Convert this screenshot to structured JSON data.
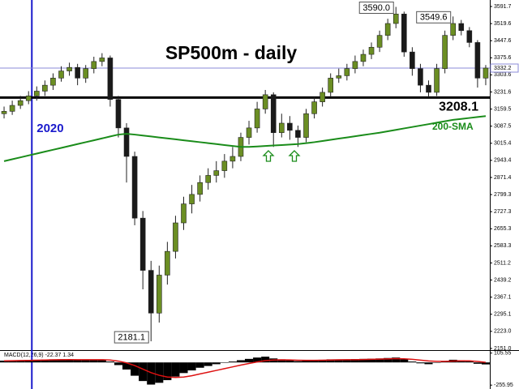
{
  "chart_data": {
    "type": "candlestick",
    "title": "SP500m - daily",
    "categories": [
      null,
      null,
      null,
      null,
      "2020",
      null,
      null,
      null,
      null,
      null,
      null,
      null,
      null,
      null,
      null,
      null,
      null,
      null,
      null,
      null,
      null,
      null,
      null,
      null,
      null,
      null,
      null,
      null,
      null,
      null,
      null,
      null,
      null,
      null,
      null,
      null,
      null,
      null,
      null,
      null,
      null,
      null,
      null,
      null,
      null,
      null,
      null,
      null,
      null,
      null,
      null,
      null,
      null,
      null,
      null,
      null,
      null,
      null,
      null,
      null
    ],
    "open": [
      3140,
      3150,
      3175,
      3195,
      3215,
      3235,
      3260,
      3290,
      3320,
      3335,
      3290,
      3330,
      3360,
      3375,
      3200,
      3080,
      2960,
      2700,
      2480,
      2300,
      2460,
      2560,
      2680,
      2760,
      2800,
      2850,
      2880,
      2900,
      2940,
      2960,
      3040,
      3080,
      3160,
      3220,
      3060,
      3100,
      3070,
      3040,
      3140,
      3190,
      3230,
      3290,
      3300,
      3330,
      3360,
      3390,
      3420,
      3470,
      3520,
      3560,
      3400,
      3330,
      3260,
      3230,
      3330,
      3470,
      3520,
      3490,
      3440,
      3290
    ],
    "high": [
      3170,
      3195,
      3215,
      3235,
      3255,
      3280,
      3310,
      3340,
      3355,
      3350,
      3345,
      3380,
      3395,
      3385,
      3215,
      3100,
      2980,
      2730,
      2520,
      2500,
      2600,
      2710,
      2790,
      2840,
      2880,
      2910,
      2940,
      2970,
      3000,
      3060,
      3110,
      3190,
      3240,
      3230,
      3140,
      3130,
      3090,
      3160,
      3210,
      3250,
      3310,
      3330,
      3350,
      3385,
      3410,
      3440,
      3490,
      3540,
      3590.0,
      3570,
      3420,
      3350,
      3280,
      3350,
      3490,
      3549.6,
      3535,
      3505,
      3450,
      3345
    ],
    "low": [
      3120,
      3135,
      3160,
      3180,
      3195,
      3215,
      3240,
      3275,
      3300,
      3260,
      3270,
      3310,
      3340,
      3170,
      3040,
      2850,
      2670,
      2400,
      2181.1,
      2260,
      2420,
      2530,
      2650,
      2720,
      2770,
      2820,
      2850,
      2870,
      2910,
      2940,
      3010,
      3060,
      3140,
      3000,
      3040,
      3030,
      3000,
      3020,
      3120,
      3170,
      3210,
      3270,
      3280,
      3310,
      3340,
      3370,
      3400,
      3450,
      3500,
      3380,
      3300,
      3230,
      3210,
      3215,
      3310,
      3450,
      3470,
      3420,
      3250,
      3260
    ],
    "close": [
      3150,
      3175,
      3195,
      3215,
      3235,
      3260,
      3290,
      3320,
      3335,
      3290,
      3330,
      3360,
      3375,
      3200,
      3080,
      2960,
      2700,
      2480,
      2300,
      2460,
      2560,
      2680,
      2760,
      2800,
      2850,
      2880,
      2900,
      2940,
      2960,
      3040,
      3080,
      3160,
      3220,
      3060,
      3100,
      3070,
      3040,
      3140,
      3190,
      3230,
      3290,
      3300,
      3330,
      3360,
      3390,
      3420,
      3470,
      3520,
      3560,
      3400,
      3330,
      3260,
      3230,
      3330,
      3470,
      3520,
      3490,
      3440,
      3290,
      3332.2
    ],
    "up_color": "#6b8e23",
    "down_color": "#1a1a1a",
    "value_labels": {
      "high": {
        "48": "3590.0",
        "55": "3549.6"
      },
      "low": {
        "18": "2181.1"
      }
    },
    "sma": {
      "name": "200-SMA",
      "color": "#1a8c1a",
      "values": [
        2940,
        2948,
        2956,
        2964,
        2972,
        2980,
        2988,
        2996,
        3004,
        3012,
        3020,
        3028,
        3036,
        3044,
        3052,
        3055,
        3052,
        3048,
        3044,
        3040,
        3036,
        3032,
        3028,
        3024,
        3020,
        3016,
        3012,
        3008,
        3004,
        3000,
        3000,
        3002,
        3004,
        3006,
        3008,
        3010,
        3012,
        3016,
        3020,
        3025,
        3030,
        3035,
        3040,
        3045,
        3050,
        3055,
        3060,
        3066,
        3072,
        3078,
        3084,
        3090,
        3096,
        3102,
        3108,
        3114,
        3118,
        3122,
        3126,
        3130
      ]
    },
    "hline": {
      "value": 3208.1,
      "label": "3208.1",
      "color": "#000000"
    },
    "last_price_color": "#8b8bd8",
    "year_line_color": "#1a1acc",
    "ylim": [
      2144,
      3619
    ],
    "yticks": [
      {
        "value": 2151.0,
        "label": "2151.0"
      },
      {
        "value": 2223.0,
        "label": "2223.0"
      },
      2295.1,
      2367.1,
      2439.2,
      2511.2,
      2583.3,
      2655.3,
      2727.3,
      2799.3,
      2871.4,
      2943.4,
      3015.4,
      3087.5,
      3159.5,
      3231.6,
      3303.6,
      3375.6,
      3447.6,
      3519.6,
      3591.7
    ],
    "macd": {
      "label": "MACD(12,26,9) -22.37 1.34",
      "histogram": [
        20,
        22,
        25,
        28,
        30,
        32,
        35,
        36,
        34,
        28,
        30,
        32,
        30,
        10,
        -30,
        -80,
        -150,
        -210,
        -250,
        -230,
        -200,
        -160,
        -120,
        -90,
        -60,
        -40,
        -20,
        -5,
        10,
        25,
        40,
        55,
        65,
        45,
        35,
        25,
        15,
        20,
        25,
        30,
        35,
        35,
        35,
        38,
        40,
        42,
        45,
        50,
        55,
        35,
        10,
        -10,
        -20,
        -5,
        15,
        30,
        25,
        15,
        -15,
        -22.37
      ],
      "signal": [
        18,
        19,
        21,
        23,
        25,
        27,
        29,
        31,
        32,
        31,
        31,
        31,
        31,
        27,
        15,
        -5,
        -35,
        -75,
        -115,
        -145,
        -165,
        -170,
        -165,
        -150,
        -130,
        -110,
        -90,
        -70,
        -50,
        -30,
        -12,
        5,
        20,
        27,
        29,
        28,
        25,
        24,
        24,
        25,
        27,
        29,
        30,
        31,
        33,
        35,
        37,
        40,
        43,
        41,
        35,
        26,
        17,
        12,
        12,
        16,
        18,
        18,
        11,
        1.34
      ],
      "histogram_color": "#000000",
      "signal_color": "#dd1111",
      "ylim": [
        -300,
        130
      ],
      "yticks": [
        105.55,
        -255.95
      ]
    }
  }
}
